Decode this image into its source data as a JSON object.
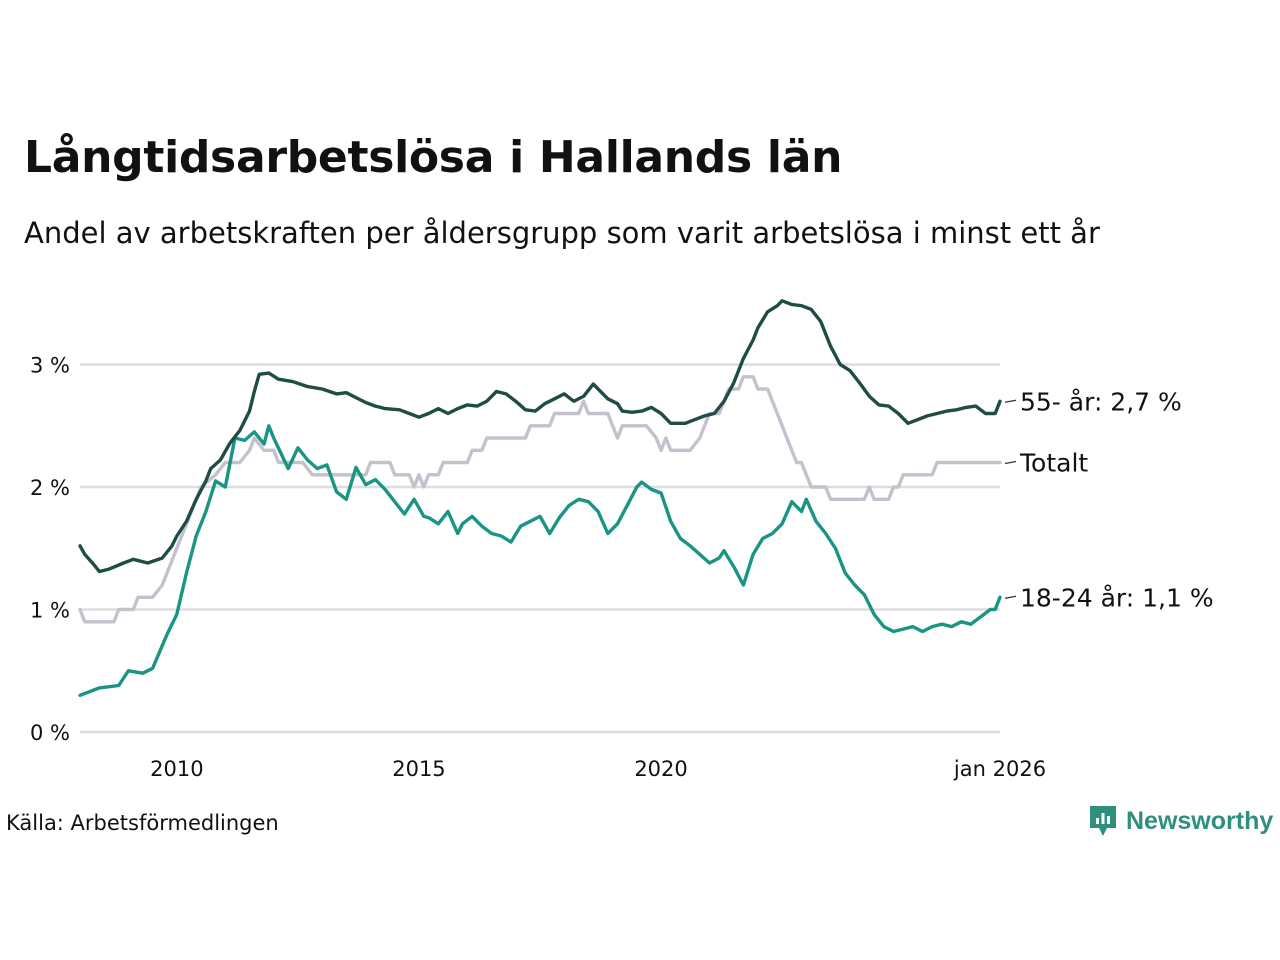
{
  "header": {
    "title": "Långtidsarbetslösa i Hallands län",
    "subtitle": "Andel av arbetskraften per åldersgrupp som varit arbetslösa i minst ett år"
  },
  "footer": {
    "source": "Källa: Arbetsförmedlingen",
    "brand": "Newsworthy"
  },
  "colors": {
    "series_55": "#1f4d45",
    "series_total": "#c4c1cd",
    "series_18_24": "#1a9483",
    "grid": "#dddddd",
    "brand": "#2f8f7f"
  },
  "chart_data": {
    "type": "line",
    "title": "Långtidsarbetslösa i Hallands län",
    "subtitle": "Andel av arbetskraften per åldersgrupp som varit arbetslösa i minst ett år",
    "xlabel": "",
    "ylabel": "",
    "x_range": [
      2008.0,
      2026.0
    ],
    "ylim": [
      0,
      3.6
    ],
    "y_ticks": [
      0,
      1,
      2,
      3
    ],
    "y_tick_labels": [
      "0 %",
      "1 %",
      "2 %",
      "3 %"
    ],
    "x_ticks": [
      2010,
      2015,
      2020,
      2026.0
    ],
    "x_tick_labels": [
      "2010",
      "2015",
      "2020",
      "jan 2026"
    ],
    "grid": true,
    "series": [
      {
        "name": "55- år",
        "end_label": "55- år: 2,7 %",
        "color_key": "series_55",
        "points": [
          [
            2008.0,
            1.52
          ],
          [
            2008.1,
            1.45
          ],
          [
            2008.3,
            1.36
          ],
          [
            2008.4,
            1.31
          ],
          [
            2008.6,
            1.33
          ],
          [
            2008.9,
            1.38
          ],
          [
            2009.1,
            1.41
          ],
          [
            2009.4,
            1.38
          ],
          [
            2009.7,
            1.42
          ],
          [
            2009.9,
            1.52
          ],
          [
            2010.0,
            1.6
          ],
          [
            2010.2,
            1.72
          ],
          [
            2010.4,
            1.9
          ],
          [
            2010.6,
            2.05
          ],
          [
            2010.7,
            2.15
          ],
          [
            2010.9,
            2.22
          ],
          [
            2011.1,
            2.36
          ],
          [
            2011.3,
            2.46
          ],
          [
            2011.5,
            2.62
          ],
          [
            2011.6,
            2.78
          ],
          [
            2011.7,
            2.92
          ],
          [
            2011.9,
            2.93
          ],
          [
            2012.1,
            2.88
          ],
          [
            2012.4,
            2.86
          ],
          [
            2012.7,
            2.82
          ],
          [
            2013.0,
            2.8
          ],
          [
            2013.3,
            2.76
          ],
          [
            2013.5,
            2.77
          ],
          [
            2013.7,
            2.73
          ],
          [
            2013.9,
            2.69
          ],
          [
            2014.1,
            2.66
          ],
          [
            2014.3,
            2.64
          ],
          [
            2014.6,
            2.63
          ],
          [
            2014.8,
            2.6
          ],
          [
            2015.0,
            2.57
          ],
          [
            2015.2,
            2.6
          ],
          [
            2015.4,
            2.64
          ],
          [
            2015.6,
            2.6
          ],
          [
            2015.8,
            2.64
          ],
          [
            2016.0,
            2.67
          ],
          [
            2016.2,
            2.66
          ],
          [
            2016.4,
            2.7
          ],
          [
            2016.6,
            2.78
          ],
          [
            2016.8,
            2.76
          ],
          [
            2017.0,
            2.7
          ],
          [
            2017.2,
            2.63
          ],
          [
            2017.4,
            2.62
          ],
          [
            2017.6,
            2.68
          ],
          [
            2017.8,
            2.72
          ],
          [
            2018.0,
            2.76
          ],
          [
            2018.2,
            2.7
          ],
          [
            2018.4,
            2.74
          ],
          [
            2018.6,
            2.84
          ],
          [
            2018.7,
            2.8
          ],
          [
            2018.9,
            2.72
          ],
          [
            2019.1,
            2.68
          ],
          [
            2019.2,
            2.62
          ],
          [
            2019.4,
            2.61
          ],
          [
            2019.6,
            2.62
          ],
          [
            2019.8,
            2.65
          ],
          [
            2020.0,
            2.6
          ],
          [
            2020.2,
            2.52
          ],
          [
            2020.5,
            2.52
          ],
          [
            2020.7,
            2.55
          ],
          [
            2020.9,
            2.58
          ],
          [
            2021.1,
            2.6
          ],
          [
            2021.3,
            2.7
          ],
          [
            2021.5,
            2.85
          ],
          [
            2021.7,
            3.05
          ],
          [
            2021.9,
            3.2
          ],
          [
            2022.0,
            3.3
          ],
          [
            2022.2,
            3.43
          ],
          [
            2022.4,
            3.48
          ],
          [
            2022.5,
            3.52
          ],
          [
            2022.7,
            3.49
          ],
          [
            2022.9,
            3.48
          ],
          [
            2023.1,
            3.45
          ],
          [
            2023.3,
            3.35
          ],
          [
            2023.5,
            3.15
          ],
          [
            2023.7,
            3.0
          ],
          [
            2023.9,
            2.95
          ],
          [
            2024.1,
            2.85
          ],
          [
            2024.3,
            2.74
          ],
          [
            2024.5,
            2.67
          ],
          [
            2024.7,
            2.66
          ],
          [
            2024.9,
            2.6
          ],
          [
            2025.1,
            2.52
          ],
          [
            2025.3,
            2.55
          ],
          [
            2025.5,
            2.58
          ],
          [
            2025.7,
            2.6
          ],
          [
            2025.9,
            2.62
          ],
          [
            2026.1,
            2.63
          ],
          [
            2026.3,
            2.65
          ],
          [
            2026.5,
            2.66
          ],
          [
            2026.7,
            2.6
          ],
          [
            2026.9,
            2.6
          ],
          [
            2027.0,
            2.7
          ]
        ]
      },
      {
        "name": "Totalt",
        "end_label": "Totalt",
        "color_key": "series_total",
        "points": [
          [
            2008.0,
            1.0
          ],
          [
            2008.1,
            0.9
          ],
          [
            2008.7,
            0.9
          ],
          [
            2008.8,
            1.0
          ],
          [
            2009.1,
            1.0
          ],
          [
            2009.2,
            1.1
          ],
          [
            2009.5,
            1.1
          ],
          [
            2009.7,
            1.2
          ],
          [
            2009.9,
            1.4
          ],
          [
            2010.1,
            1.6
          ],
          [
            2010.3,
            1.8
          ],
          [
            2010.5,
            2.0
          ],
          [
            2010.8,
            2.1
          ],
          [
            2011.0,
            2.2
          ],
          [
            2011.3,
            2.2
          ],
          [
            2011.5,
            2.3
          ],
          [
            2011.6,
            2.4
          ],
          [
            2011.8,
            2.3
          ],
          [
            2012.0,
            2.3
          ],
          [
            2012.1,
            2.2
          ],
          [
            2012.6,
            2.2
          ],
          [
            2012.8,
            2.1
          ],
          [
            2013.9,
            2.1
          ],
          [
            2014.0,
            2.2
          ],
          [
            2014.4,
            2.2
          ],
          [
            2014.5,
            2.1
          ],
          [
            2014.8,
            2.1
          ],
          [
            2014.9,
            2.0
          ],
          [
            2015.0,
            2.1
          ],
          [
            2015.1,
            2.0
          ],
          [
            2015.2,
            2.1
          ],
          [
            2015.4,
            2.1
          ],
          [
            2015.5,
            2.2
          ],
          [
            2016.0,
            2.2
          ],
          [
            2016.1,
            2.3
          ],
          [
            2016.3,
            2.3
          ],
          [
            2016.4,
            2.4
          ],
          [
            2017.2,
            2.4
          ],
          [
            2017.3,
            2.5
          ],
          [
            2017.7,
            2.5
          ],
          [
            2017.8,
            2.6
          ],
          [
            2018.3,
            2.6
          ],
          [
            2018.4,
            2.7
          ],
          [
            2018.5,
            2.6
          ],
          [
            2018.9,
            2.6
          ],
          [
            2019.0,
            2.5
          ],
          [
            2019.1,
            2.4
          ],
          [
            2019.2,
            2.5
          ],
          [
            2019.7,
            2.5
          ],
          [
            2019.9,
            2.4
          ],
          [
            2020.0,
            2.3
          ],
          [
            2020.1,
            2.4
          ],
          [
            2020.2,
            2.3
          ],
          [
            2020.6,
            2.3
          ],
          [
            2020.8,
            2.4
          ],
          [
            2020.9,
            2.5
          ],
          [
            2021.0,
            2.6
          ],
          [
            2021.2,
            2.6
          ],
          [
            2021.3,
            2.7
          ],
          [
            2021.4,
            2.8
          ],
          [
            2021.6,
            2.8
          ],
          [
            2021.7,
            2.9
          ],
          [
            2021.9,
            2.9
          ],
          [
            2022.0,
            2.8
          ],
          [
            2022.2,
            2.8
          ],
          [
            2022.3,
            2.7
          ],
          [
            2022.4,
            2.6
          ],
          [
            2022.5,
            2.5
          ],
          [
            2022.6,
            2.4
          ],
          [
            2022.7,
            2.3
          ],
          [
            2022.8,
            2.2
          ],
          [
            2022.9,
            2.2
          ],
          [
            2023.0,
            2.1
          ],
          [
            2023.1,
            2.0
          ],
          [
            2023.4,
            2.0
          ],
          [
            2023.5,
            1.9
          ],
          [
            2024.2,
            1.9
          ],
          [
            2024.3,
            2.0
          ],
          [
            2024.4,
            1.9
          ],
          [
            2024.7,
            1.9
          ],
          [
            2024.8,
            2.0
          ],
          [
            2024.9,
            2.0
          ],
          [
            2025.0,
            2.1
          ],
          [
            2025.6,
            2.1
          ],
          [
            2025.7,
            2.2
          ],
          [
            2026.0,
            2.2
          ],
          [
            2026.5,
            2.2
          ],
          [
            2027.0,
            2.2
          ]
        ]
      },
      {
        "name": "18-24 år",
        "end_label": "18-24 år: 1,1 %",
        "color_key": "series_18_24",
        "points": [
          [
            2008.0,
            0.3
          ],
          [
            2008.4,
            0.36
          ],
          [
            2008.8,
            0.38
          ],
          [
            2009.0,
            0.5
          ],
          [
            2009.3,
            0.48
          ],
          [
            2009.5,
            0.52
          ],
          [
            2009.8,
            0.8
          ],
          [
            2010.0,
            0.96
          ],
          [
            2010.2,
            1.3
          ],
          [
            2010.4,
            1.6
          ],
          [
            2010.6,
            1.8
          ],
          [
            2010.8,
            2.05
          ],
          [
            2011.0,
            2.0
          ],
          [
            2011.2,
            2.4
          ],
          [
            2011.4,
            2.38
          ],
          [
            2011.6,
            2.45
          ],
          [
            2011.8,
            2.35
          ],
          [
            2011.9,
            2.5
          ],
          [
            2012.0,
            2.4
          ],
          [
            2012.3,
            2.15
          ],
          [
            2012.5,
            2.32
          ],
          [
            2012.7,
            2.22
          ],
          [
            2012.9,
            2.15
          ],
          [
            2013.1,
            2.18
          ],
          [
            2013.3,
            1.96
          ],
          [
            2013.5,
            1.9
          ],
          [
            2013.7,
            2.16
          ],
          [
            2013.9,
            2.02
          ],
          [
            2014.1,
            2.06
          ],
          [
            2014.3,
            1.98
          ],
          [
            2014.5,
            1.88
          ],
          [
            2014.7,
            1.78
          ],
          [
            2014.9,
            1.9
          ],
          [
            2015.1,
            1.76
          ],
          [
            2015.2,
            1.75
          ],
          [
            2015.4,
            1.7
          ],
          [
            2015.6,
            1.8
          ],
          [
            2015.8,
            1.62
          ],
          [
            2015.9,
            1.7
          ],
          [
            2016.1,
            1.76
          ],
          [
            2016.3,
            1.68
          ],
          [
            2016.5,
            1.62
          ],
          [
            2016.7,
            1.6
          ],
          [
            2016.9,
            1.55
          ],
          [
            2017.1,
            1.68
          ],
          [
            2017.3,
            1.72
          ],
          [
            2017.5,
            1.76
          ],
          [
            2017.7,
            1.62
          ],
          [
            2017.9,
            1.75
          ],
          [
            2018.1,
            1.85
          ],
          [
            2018.3,
            1.9
          ],
          [
            2018.5,
            1.88
          ],
          [
            2018.7,
            1.8
          ],
          [
            2018.9,
            1.62
          ],
          [
            2019.1,
            1.7
          ],
          [
            2019.3,
            1.85
          ],
          [
            2019.5,
            2.0
          ],
          [
            2019.6,
            2.04
          ],
          [
            2019.8,
            1.98
          ],
          [
            2020.0,
            1.95
          ],
          [
            2020.2,
            1.72
          ],
          [
            2020.4,
            1.58
          ],
          [
            2020.6,
            1.52
          ],
          [
            2020.8,
            1.45
          ],
          [
            2021.0,
            1.38
          ],
          [
            2021.2,
            1.42
          ],
          [
            2021.3,
            1.48
          ],
          [
            2021.5,
            1.35
          ],
          [
            2021.7,
            1.2
          ],
          [
            2021.9,
            1.45
          ],
          [
            2022.1,
            1.58
          ],
          [
            2022.3,
            1.62
          ],
          [
            2022.5,
            1.7
          ],
          [
            2022.7,
            1.88
          ],
          [
            2022.9,
            1.8
          ],
          [
            2023.0,
            1.9
          ],
          [
            2023.2,
            1.72
          ],
          [
            2023.4,
            1.62
          ],
          [
            2023.6,
            1.5
          ],
          [
            2023.8,
            1.3
          ],
          [
            2024.0,
            1.2
          ],
          [
            2024.2,
            1.12
          ],
          [
            2024.4,
            0.96
          ],
          [
            2024.6,
            0.86
          ],
          [
            2024.8,
            0.82
          ],
          [
            2025.0,
            0.84
          ],
          [
            2025.2,
            0.86
          ],
          [
            2025.4,
            0.82
          ],
          [
            2025.6,
            0.86
          ],
          [
            2025.8,
            0.88
          ],
          [
            2026.0,
            0.86
          ],
          [
            2026.2,
            0.9
          ],
          [
            2026.4,
            0.88
          ],
          [
            2026.6,
            0.94
          ],
          [
            2026.8,
            1.0
          ],
          [
            2026.9,
            1.0
          ],
          [
            2027.0,
            1.1
          ]
        ]
      }
    ]
  }
}
